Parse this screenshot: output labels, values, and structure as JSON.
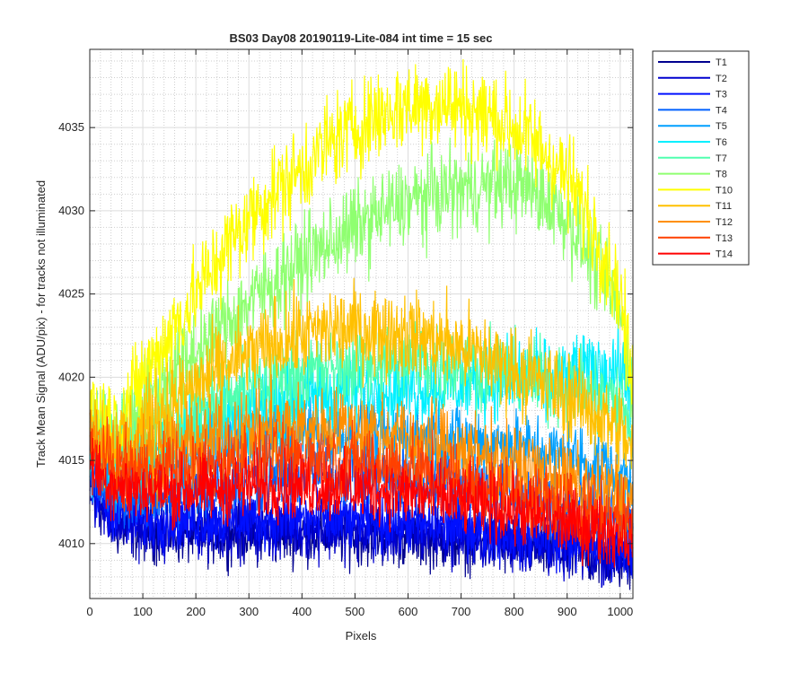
{
  "chart_data": {
    "type": "line",
    "title": "BS03 Day08 20190119-Lite-084 int time = 15 sec",
    "xlabel": "Pixels",
    "ylabel": "Track Mean Signal (ADU/pix) - for tracks not illuminated",
    "xlim": [
      0,
      1024
    ],
    "ylim": [
      4006.7,
      4039.7
    ],
    "xticks": [
      0,
      100,
      200,
      300,
      400,
      500,
      600,
      700,
      800,
      900,
      1000
    ],
    "yticks": [
      4010,
      4015,
      4020,
      4025,
      4030,
      4035
    ],
    "grid": true,
    "minor_grid": true,
    "legend_position": "outside-top-right",
    "x": [
      0,
      50,
      100,
      150,
      200,
      250,
      300,
      350,
      400,
      450,
      500,
      550,
      600,
      650,
      700,
      750,
      800,
      850,
      900,
      950,
      1000,
      1024
    ],
    "series": [
      {
        "name": "T1",
        "color": "#00008F",
        "noise": 0.9,
        "values": [
          4013,
          4011,
          4010.8,
          4010.6,
          4010.6,
          4010.6,
          4010.6,
          4010.6,
          4010.6,
          4010.6,
          4010.5,
          4010.5,
          4010.4,
          4010.3,
          4010.2,
          4010.0,
          4009.8,
          4009.6,
          4009.4,
          4009.2,
          4009.0,
          4009.0
        ]
      },
      {
        "name": "T2",
        "color": "#0000CF",
        "noise": 0.9,
        "values": [
          4013,
          4011.2,
          4011,
          4010.9,
          4010.9,
          4010.9,
          4010.9,
          4010.9,
          4010.9,
          4010.8,
          4010.8,
          4010.7,
          4010.7,
          4010.6,
          4010.5,
          4010.3,
          4010.1,
          4009.9,
          4009.7,
          4009.5,
          4009.3,
          4009.3
        ]
      },
      {
        "name": "T3",
        "color": "#0010FF",
        "noise": 0.9,
        "values": [
          4013.5,
          4012,
          4011.5,
          4011.4,
          4011.4,
          4011.5,
          4011.5,
          4011.5,
          4011.5,
          4011.4,
          4011.4,
          4011.3,
          4011.2,
          4011.1,
          4011.0,
          4010.8,
          4010.6,
          4010.4,
          4010.2,
          4010.0,
          4009.8,
          4009.8
        ]
      },
      {
        "name": "T4",
        "color": "#0060FF",
        "noise": 1.0,
        "values": [
          4014,
          4013,
          4012.8,
          4012.9,
          4013.2,
          4013.5,
          4013.8,
          4014.0,
          4014.2,
          4014.2,
          4014.2,
          4014.1,
          4014.0,
          4013.8,
          4013.6,
          4013.3,
          4013.0,
          4012.6,
          4012.3,
          4012.0,
          4011.8,
          4011.5
        ]
      },
      {
        "name": "T5",
        "color": "#00A0FF",
        "noise": 1.1,
        "values": [
          4015,
          4014,
          4014,
          4014.5,
          4015,
          4015.5,
          4016,
          4016.3,
          4016.5,
          4016.6,
          4016.6,
          4016.5,
          4016.5,
          4016.4,
          4016.2,
          4016.0,
          4015.8,
          4015.5,
          4015.2,
          4014.8,
          4014.3,
          4013.8
        ]
      },
      {
        "name": "T6",
        "color": "#00F0FF",
        "noise": 1.2,
        "values": [
          4016,
          4015,
          4015.5,
          4016.3,
          4017,
          4017.6,
          4018,
          4018.5,
          4018.8,
          4019,
          4019.2,
          4019.3,
          4019.4,
          4019.5,
          4019.6,
          4019.7,
          4019.8,
          4019.8,
          4020,
          4020.5,
          4020.5,
          4019
        ]
      },
      {
        "name": "T7",
        "color": "#50FFAF",
        "noise": 1.2,
        "values": [
          4016.5,
          4016,
          4016.5,
          4017.3,
          4018,
          4018.7,
          4019.3,
          4019.8,
          4020.2,
          4020.5,
          4020.7,
          4020.9,
          4021,
          4020.9,
          4020.8,
          4020.5,
          4020.2,
          4019.8,
          4019.4,
          4019,
          4018.5,
          4016
        ]
      },
      {
        "name": "T8",
        "color": "#8FFF70",
        "noise": 1.3,
        "values": [
          4017,
          4016.5,
          4018.5,
          4020,
          4021.5,
          4023,
          4024.5,
          4025.8,
          4027,
          4028,
          4029,
          4029.8,
          4030.5,
          4031,
          4031.3,
          4031.5,
          4031.7,
          4031,
          4029.5,
          4027,
          4024,
          4019.5
        ]
      },
      {
        "name": "T10",
        "color": "#FFFF00",
        "noise": 1.4,
        "values": [
          4018.5,
          4017,
          4020,
          4022.5,
          4025,
          4027.5,
          4029.5,
          4031.2,
          4032.5,
          4034,
          4035,
          4035.8,
          4036.3,
          4036.5,
          4036.3,
          4035.8,
          4035,
          4033.8,
          4032,
          4029,
          4025,
          4019
        ]
      },
      {
        "name": "T11",
        "color": "#FFC000",
        "noise": 1.3,
        "values": [
          4017,
          4016,
          4017,
          4018.3,
          4019.5,
          4020.5,
          4021.3,
          4022,
          4022.5,
          4022.8,
          4022.9,
          4022.8,
          4022.6,
          4022.2,
          4021.8,
          4021.2,
          4020.5,
          4019.7,
          4019,
          4018,
          4016.8,
          4015.5
        ]
      },
      {
        "name": "T12",
        "color": "#FF8F00",
        "noise": 1.2,
        "values": [
          4016.5,
          4015.3,
          4015.3,
          4015.6,
          4016,
          4016.4,
          4016.7,
          4016.9,
          4017,
          4017,
          4016.9,
          4016.7,
          4016.4,
          4016,
          4015.6,
          4015.2,
          4014.7,
          4014.2,
          4013.7,
          4013.3,
          4013,
          4012.7
        ]
      },
      {
        "name": "T13",
        "color": "#FF4000",
        "noise": 1.1,
        "values": [
          4015.5,
          4014.5,
          4014.3,
          4014.4,
          4014.6,
          4014.8,
          4015,
          4015.1,
          4015.1,
          4015,
          4014.9,
          4014.7,
          4014.4,
          4014.1,
          4013.8,
          4013.4,
          4013,
          4012.6,
          4012.2,
          4011.8,
          4011.5,
          4011.2
        ]
      },
      {
        "name": "T14",
        "color": "#FF0000",
        "noise": 1.0,
        "values": [
          4014.5,
          4013.5,
          4013.2,
          4013.1,
          4013.2,
          4013.3,
          4013.4,
          4013.5,
          4013.5,
          4013.4,
          4013.3,
          4013.2,
          4013,
          4012.8,
          4012.5,
          4012.2,
          4011.9,
          4011.5,
          4011.2,
          4010.9,
          4010.6,
          4010.3
        ]
      }
    ]
  }
}
